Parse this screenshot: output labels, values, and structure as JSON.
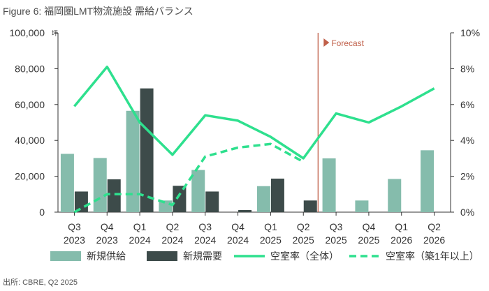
{
  "title": "Figure 6: 福岡圏LMT物流施設 需給バランス",
  "source": "出所: CBRE, Q2 2025",
  "chart_data": {
    "type": "bar",
    "categories": [
      [
        "Q3",
        "2023"
      ],
      [
        "Q4",
        "2023"
      ],
      [
        "Q1",
        "2024"
      ],
      [
        "Q2",
        "2024"
      ],
      [
        "Q3",
        "2024"
      ],
      [
        "Q4",
        "2024"
      ],
      [
        "Q1",
        "2025"
      ],
      [
        "Q2",
        "2025"
      ],
      [
        "Q3",
        "2025"
      ],
      [
        "Q4",
        "2025"
      ],
      [
        "Q1",
        "2026"
      ],
      [
        "Q2",
        "2026"
      ]
    ],
    "y_left": {
      "unit": "坪",
      "ylim": [
        0,
        100000
      ],
      "ticks": [
        "0",
        "20,000",
        "40,000",
        "60,000",
        "80,000",
        "100,000"
      ]
    },
    "y_right": {
      "ylim": [
        0,
        10
      ],
      "ticks": [
        "0%",
        "2%",
        "4%",
        "6%",
        "8%",
        "10%"
      ]
    },
    "forecast_label": "Forecast",
    "forecast_after_index": 7,
    "colors": {
      "supply": "#85bcac",
      "demand": "#3d4b4a",
      "vacancy": "#2ee08e",
      "forecast_line": "#c0604a",
      "axis": "#333333",
      "tick_text": "#333333"
    },
    "series": [
      {
        "name": "新規供給",
        "kind": "bar",
        "axis": "left",
        "values": [
          32500,
          30200,
          56500,
          6500,
          23500,
          0,
          14500,
          0,
          30000,
          6500,
          18500,
          34500
        ]
      },
      {
        "name": "新規需要",
        "kind": "bar",
        "axis": "left",
        "values": [
          11500,
          18300,
          69000,
          14700,
          11500,
          1200,
          18700,
          6500,
          null,
          null,
          null,
          null
        ]
      },
      {
        "name": "空室率（全体）",
        "kind": "line",
        "axis": "right",
        "values": [
          5.9,
          8.1,
          5.0,
          3.2,
          5.4,
          5.1,
          4.2,
          3.0,
          5.5,
          5.0,
          5.9,
          6.9
        ]
      },
      {
        "name": "空室率（築1年以上）",
        "kind": "line-dashed",
        "axis": "right",
        "values": [
          0.0,
          1.0,
          1.0,
          0.4,
          3.1,
          3.6,
          3.8,
          2.8,
          null,
          null,
          null,
          null
        ]
      }
    ],
    "legend_position": "bottom"
  }
}
